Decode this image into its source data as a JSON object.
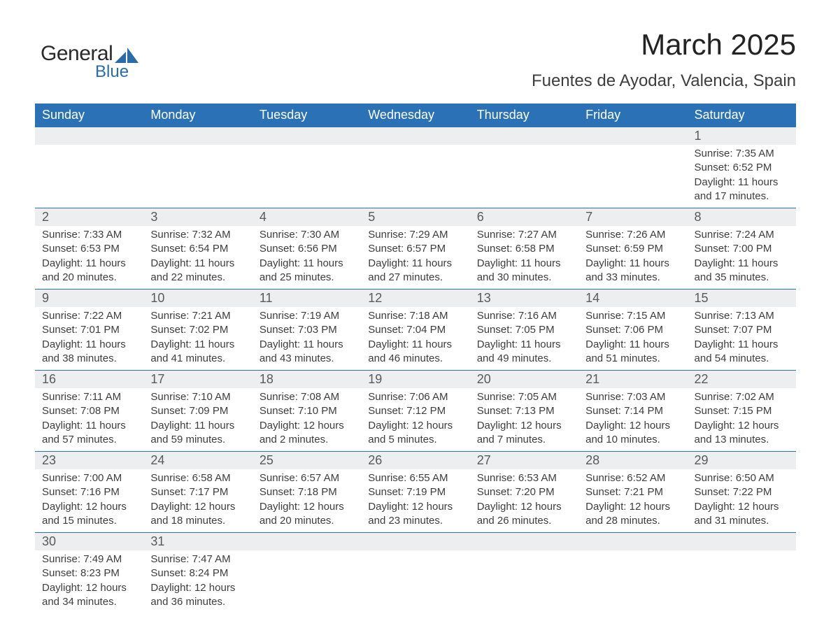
{
  "logo": {
    "word1": "General",
    "word2": "Blue",
    "accent_color": "#2a6ca8"
  },
  "title": "March 2025",
  "location": "Fuentes de Ayodar, Valencia, Spain",
  "header_bg": "#2a72b5",
  "header_fg": "#ffffff",
  "stripe_bg": "#eceeef",
  "border_color": "#2a72b5",
  "text_color": "#3d3d3d",
  "day_headers": [
    "Sunday",
    "Monday",
    "Tuesday",
    "Wednesday",
    "Thursday",
    "Friday",
    "Saturday"
  ],
  "weeks": [
    [
      null,
      null,
      null,
      null,
      null,
      null,
      {
        "n": "1",
        "sr": "Sunrise: 7:35 AM",
        "ss": "Sunset: 6:52 PM",
        "d1": "Daylight: 11 hours",
        "d2": "and 17 minutes."
      }
    ],
    [
      {
        "n": "2",
        "sr": "Sunrise: 7:33 AM",
        "ss": "Sunset: 6:53 PM",
        "d1": "Daylight: 11 hours",
        "d2": "and 20 minutes."
      },
      {
        "n": "3",
        "sr": "Sunrise: 7:32 AM",
        "ss": "Sunset: 6:54 PM",
        "d1": "Daylight: 11 hours",
        "d2": "and 22 minutes."
      },
      {
        "n": "4",
        "sr": "Sunrise: 7:30 AM",
        "ss": "Sunset: 6:56 PM",
        "d1": "Daylight: 11 hours",
        "d2": "and 25 minutes."
      },
      {
        "n": "5",
        "sr": "Sunrise: 7:29 AM",
        "ss": "Sunset: 6:57 PM",
        "d1": "Daylight: 11 hours",
        "d2": "and 27 minutes."
      },
      {
        "n": "6",
        "sr": "Sunrise: 7:27 AM",
        "ss": "Sunset: 6:58 PM",
        "d1": "Daylight: 11 hours",
        "d2": "and 30 minutes."
      },
      {
        "n": "7",
        "sr": "Sunrise: 7:26 AM",
        "ss": "Sunset: 6:59 PM",
        "d1": "Daylight: 11 hours",
        "d2": "and 33 minutes."
      },
      {
        "n": "8",
        "sr": "Sunrise: 7:24 AM",
        "ss": "Sunset: 7:00 PM",
        "d1": "Daylight: 11 hours",
        "d2": "and 35 minutes."
      }
    ],
    [
      {
        "n": "9",
        "sr": "Sunrise: 7:22 AM",
        "ss": "Sunset: 7:01 PM",
        "d1": "Daylight: 11 hours",
        "d2": "and 38 minutes."
      },
      {
        "n": "10",
        "sr": "Sunrise: 7:21 AM",
        "ss": "Sunset: 7:02 PM",
        "d1": "Daylight: 11 hours",
        "d2": "and 41 minutes."
      },
      {
        "n": "11",
        "sr": "Sunrise: 7:19 AM",
        "ss": "Sunset: 7:03 PM",
        "d1": "Daylight: 11 hours",
        "d2": "and 43 minutes."
      },
      {
        "n": "12",
        "sr": "Sunrise: 7:18 AM",
        "ss": "Sunset: 7:04 PM",
        "d1": "Daylight: 11 hours",
        "d2": "and 46 minutes."
      },
      {
        "n": "13",
        "sr": "Sunrise: 7:16 AM",
        "ss": "Sunset: 7:05 PM",
        "d1": "Daylight: 11 hours",
        "d2": "and 49 minutes."
      },
      {
        "n": "14",
        "sr": "Sunrise: 7:15 AM",
        "ss": "Sunset: 7:06 PM",
        "d1": "Daylight: 11 hours",
        "d2": "and 51 minutes."
      },
      {
        "n": "15",
        "sr": "Sunrise: 7:13 AM",
        "ss": "Sunset: 7:07 PM",
        "d1": "Daylight: 11 hours",
        "d2": "and 54 minutes."
      }
    ],
    [
      {
        "n": "16",
        "sr": "Sunrise: 7:11 AM",
        "ss": "Sunset: 7:08 PM",
        "d1": "Daylight: 11 hours",
        "d2": "and 57 minutes."
      },
      {
        "n": "17",
        "sr": "Sunrise: 7:10 AM",
        "ss": "Sunset: 7:09 PM",
        "d1": "Daylight: 11 hours",
        "d2": "and 59 minutes."
      },
      {
        "n": "18",
        "sr": "Sunrise: 7:08 AM",
        "ss": "Sunset: 7:10 PM",
        "d1": "Daylight: 12 hours",
        "d2": "and 2 minutes."
      },
      {
        "n": "19",
        "sr": "Sunrise: 7:06 AM",
        "ss": "Sunset: 7:12 PM",
        "d1": "Daylight: 12 hours",
        "d2": "and 5 minutes."
      },
      {
        "n": "20",
        "sr": "Sunrise: 7:05 AM",
        "ss": "Sunset: 7:13 PM",
        "d1": "Daylight: 12 hours",
        "d2": "and 7 minutes."
      },
      {
        "n": "21",
        "sr": "Sunrise: 7:03 AM",
        "ss": "Sunset: 7:14 PM",
        "d1": "Daylight: 12 hours",
        "d2": "and 10 minutes."
      },
      {
        "n": "22",
        "sr": "Sunrise: 7:02 AM",
        "ss": "Sunset: 7:15 PM",
        "d1": "Daylight: 12 hours",
        "d2": "and 13 minutes."
      }
    ],
    [
      {
        "n": "23",
        "sr": "Sunrise: 7:00 AM",
        "ss": "Sunset: 7:16 PM",
        "d1": "Daylight: 12 hours",
        "d2": "and 15 minutes."
      },
      {
        "n": "24",
        "sr": "Sunrise: 6:58 AM",
        "ss": "Sunset: 7:17 PM",
        "d1": "Daylight: 12 hours",
        "d2": "and 18 minutes."
      },
      {
        "n": "25",
        "sr": "Sunrise: 6:57 AM",
        "ss": "Sunset: 7:18 PM",
        "d1": "Daylight: 12 hours",
        "d2": "and 20 minutes."
      },
      {
        "n": "26",
        "sr": "Sunrise: 6:55 AM",
        "ss": "Sunset: 7:19 PM",
        "d1": "Daylight: 12 hours",
        "d2": "and 23 minutes."
      },
      {
        "n": "27",
        "sr": "Sunrise: 6:53 AM",
        "ss": "Sunset: 7:20 PM",
        "d1": "Daylight: 12 hours",
        "d2": "and 26 minutes."
      },
      {
        "n": "28",
        "sr": "Sunrise: 6:52 AM",
        "ss": "Sunset: 7:21 PM",
        "d1": "Daylight: 12 hours",
        "d2": "and 28 minutes."
      },
      {
        "n": "29",
        "sr": "Sunrise: 6:50 AM",
        "ss": "Sunset: 7:22 PM",
        "d1": "Daylight: 12 hours",
        "d2": "and 31 minutes."
      }
    ],
    [
      {
        "n": "30",
        "sr": "Sunrise: 7:49 AM",
        "ss": "Sunset: 8:23 PM",
        "d1": "Daylight: 12 hours",
        "d2": "and 34 minutes."
      },
      {
        "n": "31",
        "sr": "Sunrise: 7:47 AM",
        "ss": "Sunset: 8:24 PM",
        "d1": "Daylight: 12 hours",
        "d2": "and 36 minutes."
      },
      null,
      null,
      null,
      null,
      null
    ]
  ]
}
